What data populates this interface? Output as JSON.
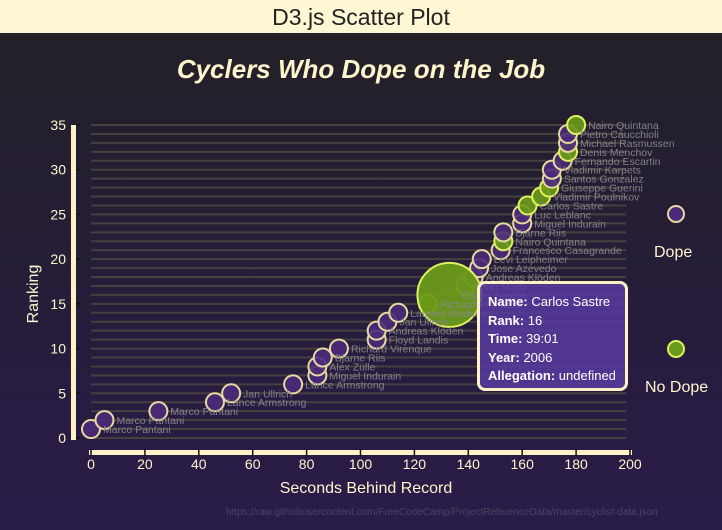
{
  "window": {
    "title": "D3.js Scatter Plot"
  },
  "chart_data": {
    "type": "scatter",
    "title": "Cyclers Who Dope on the Job",
    "xlabel": "Seconds Behind Record",
    "ylabel": "Ranking",
    "xlim": [
      0,
      200
    ],
    "ylim": [
      0,
      35
    ],
    "x_ticks": [
      0,
      20,
      40,
      60,
      80,
      100,
      120,
      140,
      160,
      180,
      200
    ],
    "y_ticks": [
      0,
      5,
      10,
      15,
      20,
      25,
      30,
      35
    ],
    "grid": true,
    "legend_position": "right",
    "legend": [
      {
        "label": "Dope",
        "color": "#4b2a7a"
      },
      {
        "label": "No Dope",
        "color": "#6a9a1a"
      }
    ],
    "points": [
      {
        "rank": 1,
        "seconds": 0,
        "name": "Marco Pantani",
        "doping": true
      },
      {
        "rank": 2,
        "seconds": 5,
        "name": "Marco Pantani",
        "doping": true
      },
      {
        "rank": 3,
        "seconds": 25,
        "name": "Marco Pantani",
        "doping": true
      },
      {
        "rank": 4,
        "seconds": 46,
        "name": "Lance Armstrong",
        "doping": true
      },
      {
        "rank": 5,
        "seconds": 52,
        "name": "Jan Ullrich",
        "doping": true
      },
      {
        "rank": 6,
        "seconds": 75,
        "name": "Lance Armstrong",
        "doping": true
      },
      {
        "rank": 7,
        "seconds": 84,
        "name": "Miguel Indurain",
        "doping": true
      },
      {
        "rank": 8,
        "seconds": 84,
        "name": "Alex Zülle",
        "doping": true
      },
      {
        "rank": 9,
        "seconds": 86,
        "name": "Bjarne Riis",
        "doping": true
      },
      {
        "rank": 10,
        "seconds": 92,
        "name": "Richard Virenque",
        "doping": true
      },
      {
        "rank": 11,
        "seconds": 106,
        "name": "Floyd Landis",
        "doping": true
      },
      {
        "rank": 12,
        "seconds": 106,
        "name": "Andreas Klöden",
        "doping": true
      },
      {
        "rank": 13,
        "seconds": 110,
        "name": "Jan Ullrich",
        "doping": true
      },
      {
        "rank": 14,
        "seconds": 114,
        "name": "Laurent Madouas",
        "doping": true
      },
      {
        "rank": 15,
        "seconds": 125,
        "name": "Richard Virenque",
        "doping": false
      },
      {
        "rank": 16,
        "seconds": 133,
        "name": "Carlos Sastre",
        "doping": false,
        "hovered": true
      },
      {
        "rank": 17,
        "seconds": 139,
        "name": "Iban Mayo",
        "doping": true
      },
      {
        "rank": 18,
        "seconds": 142,
        "name": "Andreas Klöden",
        "doping": true
      },
      {
        "rank": 19,
        "seconds": 144,
        "name": "Jose Azevedo",
        "doping": true
      },
      {
        "rank": 20,
        "seconds": 145,
        "name": "Levi Leipheimer",
        "doping": true
      },
      {
        "rank": 21,
        "seconds": 152,
        "name": "Francesco Casagrande",
        "doping": true
      },
      {
        "rank": 22,
        "seconds": 153,
        "name": "Nairo Quintana",
        "doping": false
      },
      {
        "rank": 23,
        "seconds": 153,
        "name": "Bjarne Riis",
        "doping": true
      },
      {
        "rank": 24,
        "seconds": 160,
        "name": "Miguel Indurain",
        "doping": true
      },
      {
        "rank": 25,
        "seconds": 160,
        "name": "Luc Leblanc",
        "doping": true
      },
      {
        "rank": 26,
        "seconds": 162,
        "name": "Carlos Sastre",
        "doping": false
      },
      {
        "rank": 27,
        "seconds": 167,
        "name": "Vladimir Poulnikov",
        "doping": false
      },
      {
        "rank": 28,
        "seconds": 170,
        "name": "Giuseppe Guerini",
        "doping": false
      },
      {
        "rank": 29,
        "seconds": 171,
        "name": "Santos Gonzalez",
        "doping": true
      },
      {
        "rank": 30,
        "seconds": 171,
        "name": "Vladimir Karpets",
        "doping": true
      },
      {
        "rank": 31,
        "seconds": 175,
        "name": "Fernando Escartin",
        "doping": true
      },
      {
        "rank": 32,
        "seconds": 177,
        "name": "Denis Menchov",
        "doping": false
      },
      {
        "rank": 33,
        "seconds": 177,
        "name": "Michael Rasmussen",
        "doping": true
      },
      {
        "rank": 34,
        "seconds": 177,
        "name": "Pietro Caucchioli",
        "doping": true
      },
      {
        "rank": 35,
        "seconds": 180,
        "name": "Nairo Quintana",
        "doping": false
      }
    ]
  },
  "tooltip": {
    "name_label": "Name:",
    "name": "Carlos Sastre",
    "rank_label": "Rank:",
    "rank": "16",
    "time_label": "Time:",
    "time": "39:01",
    "year_label": "Year:",
    "year": "2006",
    "allegation_label": "Allegation:",
    "allegation": "undefined"
  },
  "legend": {
    "dope": "Dope",
    "no_dope": "No Dope"
  },
  "source_text": "https://raw.githubusercontent.com/FreeCodeCamp/ProjectReferenceData/master/cyclist-data.json",
  "colors": {
    "dope_fill": "#4b2a7a",
    "no_dope_fill": "#6a9a1a",
    "stroke_dope": "#e6d9a0",
    "stroke_no_dope": "#dff060",
    "axis": "#fdf1c6",
    "text": "#fdf5cc",
    "label": "#8a8590"
  }
}
